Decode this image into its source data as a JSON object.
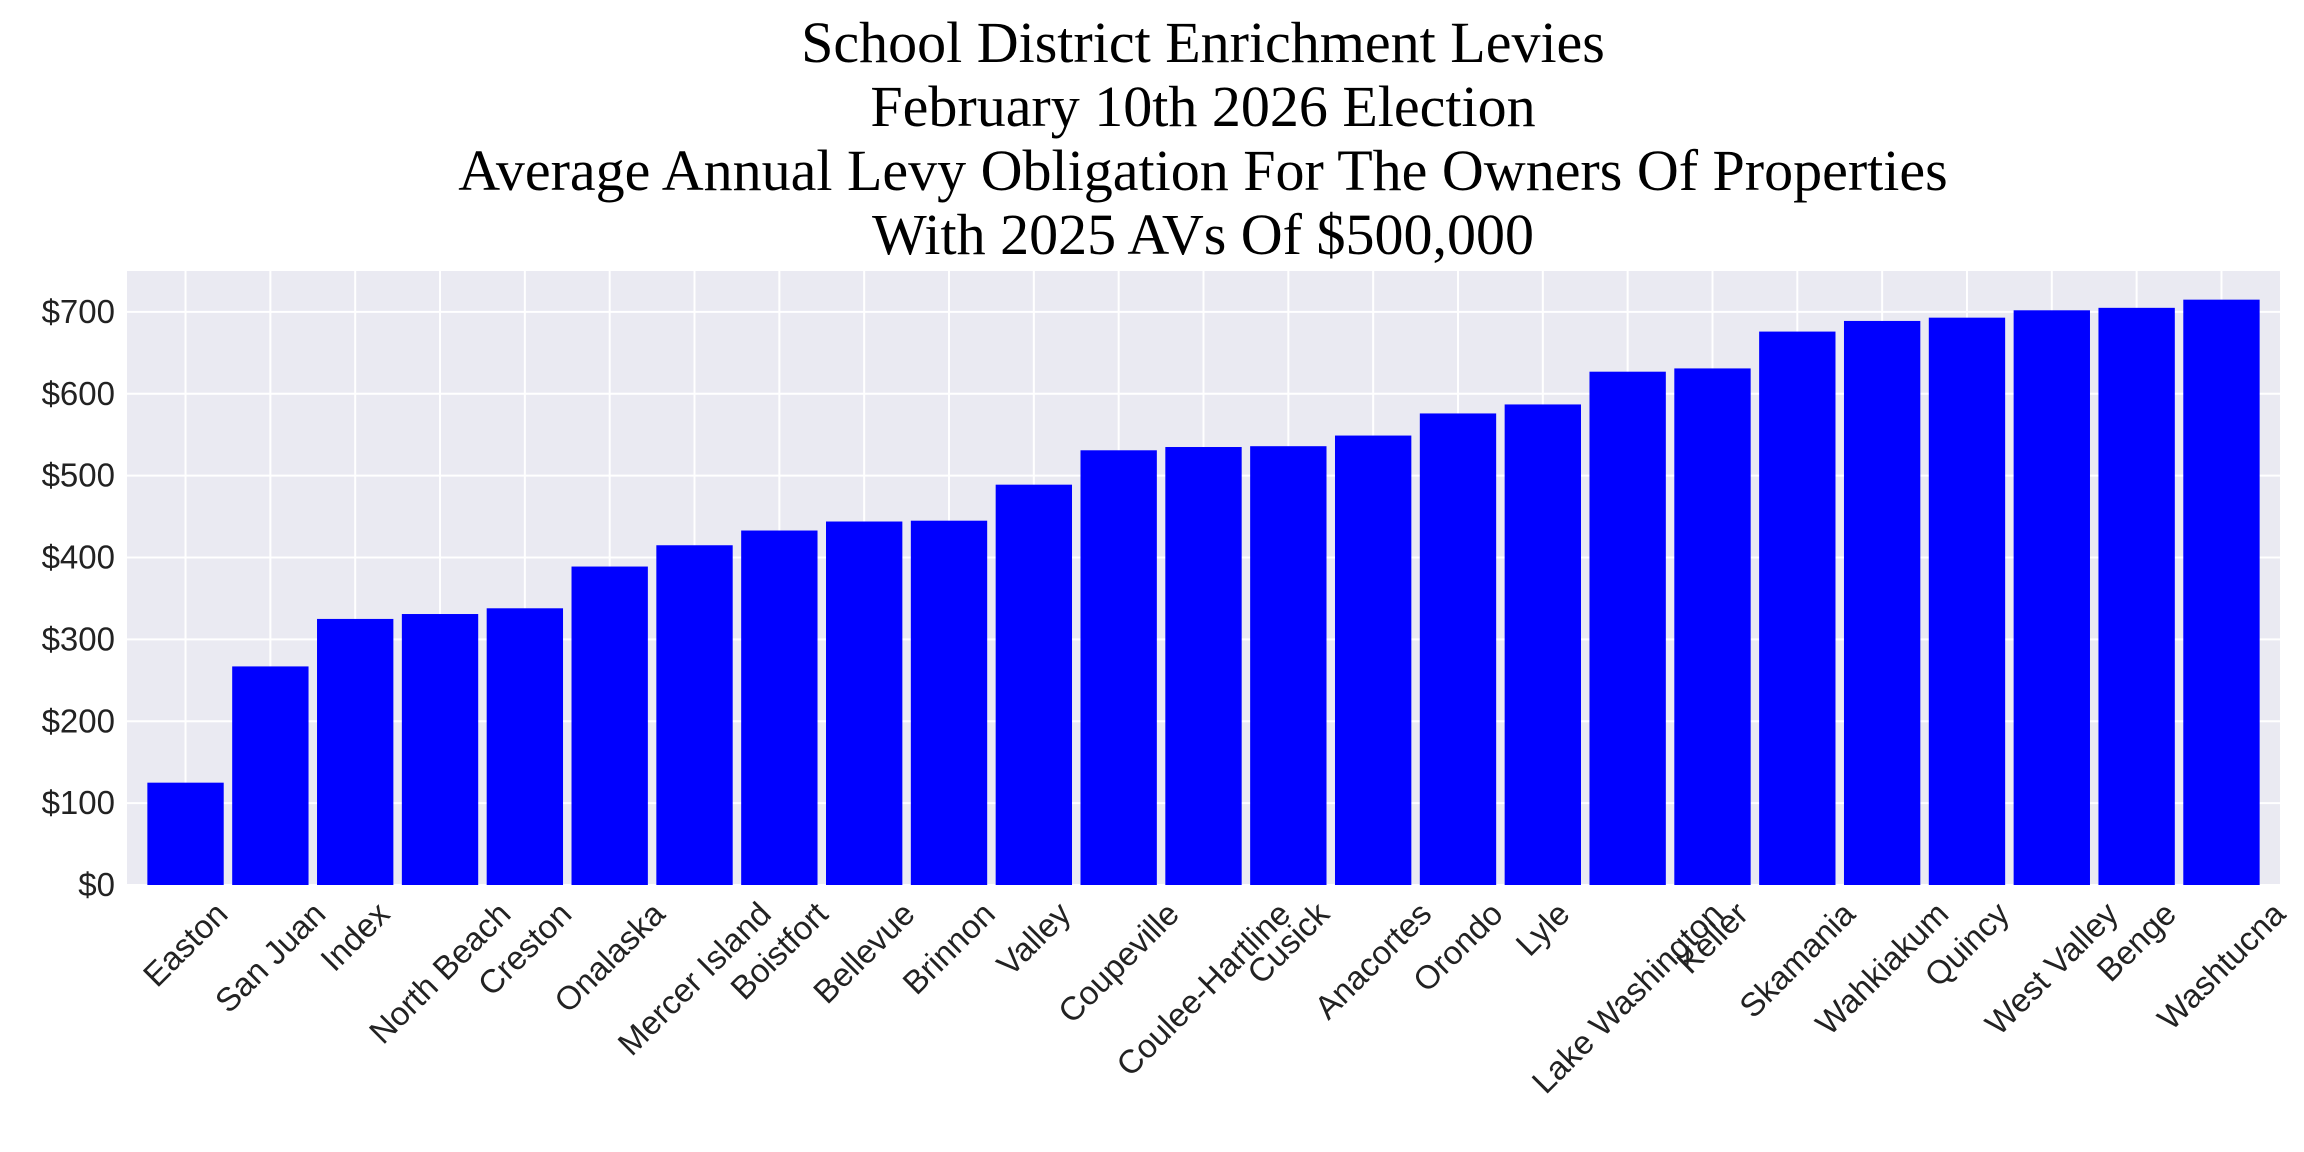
{
  "chart_data": {
    "type": "bar",
    "title": [
      "School District Enrichment Levies",
      "February 10th 2026 Election",
      "Average Annual Levy Obligation For The Owners Of Properties",
      "With 2025 AVs Of $500,000"
    ],
    "categories": [
      "Easton",
      "San Juan",
      "Index",
      "North Beach",
      "Creston",
      "Onalaska",
      "Mercer Island",
      "Boistfort",
      "Bellevue",
      "Brinnon",
      "Valley",
      "Coupeville",
      "Coulee-Hartline",
      "Cusick",
      "Anacortes",
      "Orondo",
      "Lyle",
      "Lake Washington",
      "Keller",
      "Skamania",
      "Wahkiakum",
      "Quincy",
      "West Valley",
      "Benge",
      "Washtucna"
    ],
    "values": [
      125,
      267,
      325,
      331,
      338,
      389,
      415,
      433,
      444,
      445,
      489,
      531,
      535,
      536,
      549,
      576,
      587,
      627,
      631,
      676,
      689,
      693,
      702,
      705,
      715
    ],
    "color": "#0000ff",
    "ylim": [
      0,
      750
    ],
    "yticks": [
      {
        "value": 0,
        "label": "$0"
      },
      {
        "value": 100,
        "label": "$100"
      },
      {
        "value": 200,
        "label": "$200"
      },
      {
        "value": 300,
        "label": "$300"
      },
      {
        "value": 400,
        "label": "$400"
      },
      {
        "value": 500,
        "label": "$500"
      },
      {
        "value": 600,
        "label": "$600"
      },
      {
        "value": 700,
        "label": "$700"
      }
    ],
    "grid": true
  }
}
